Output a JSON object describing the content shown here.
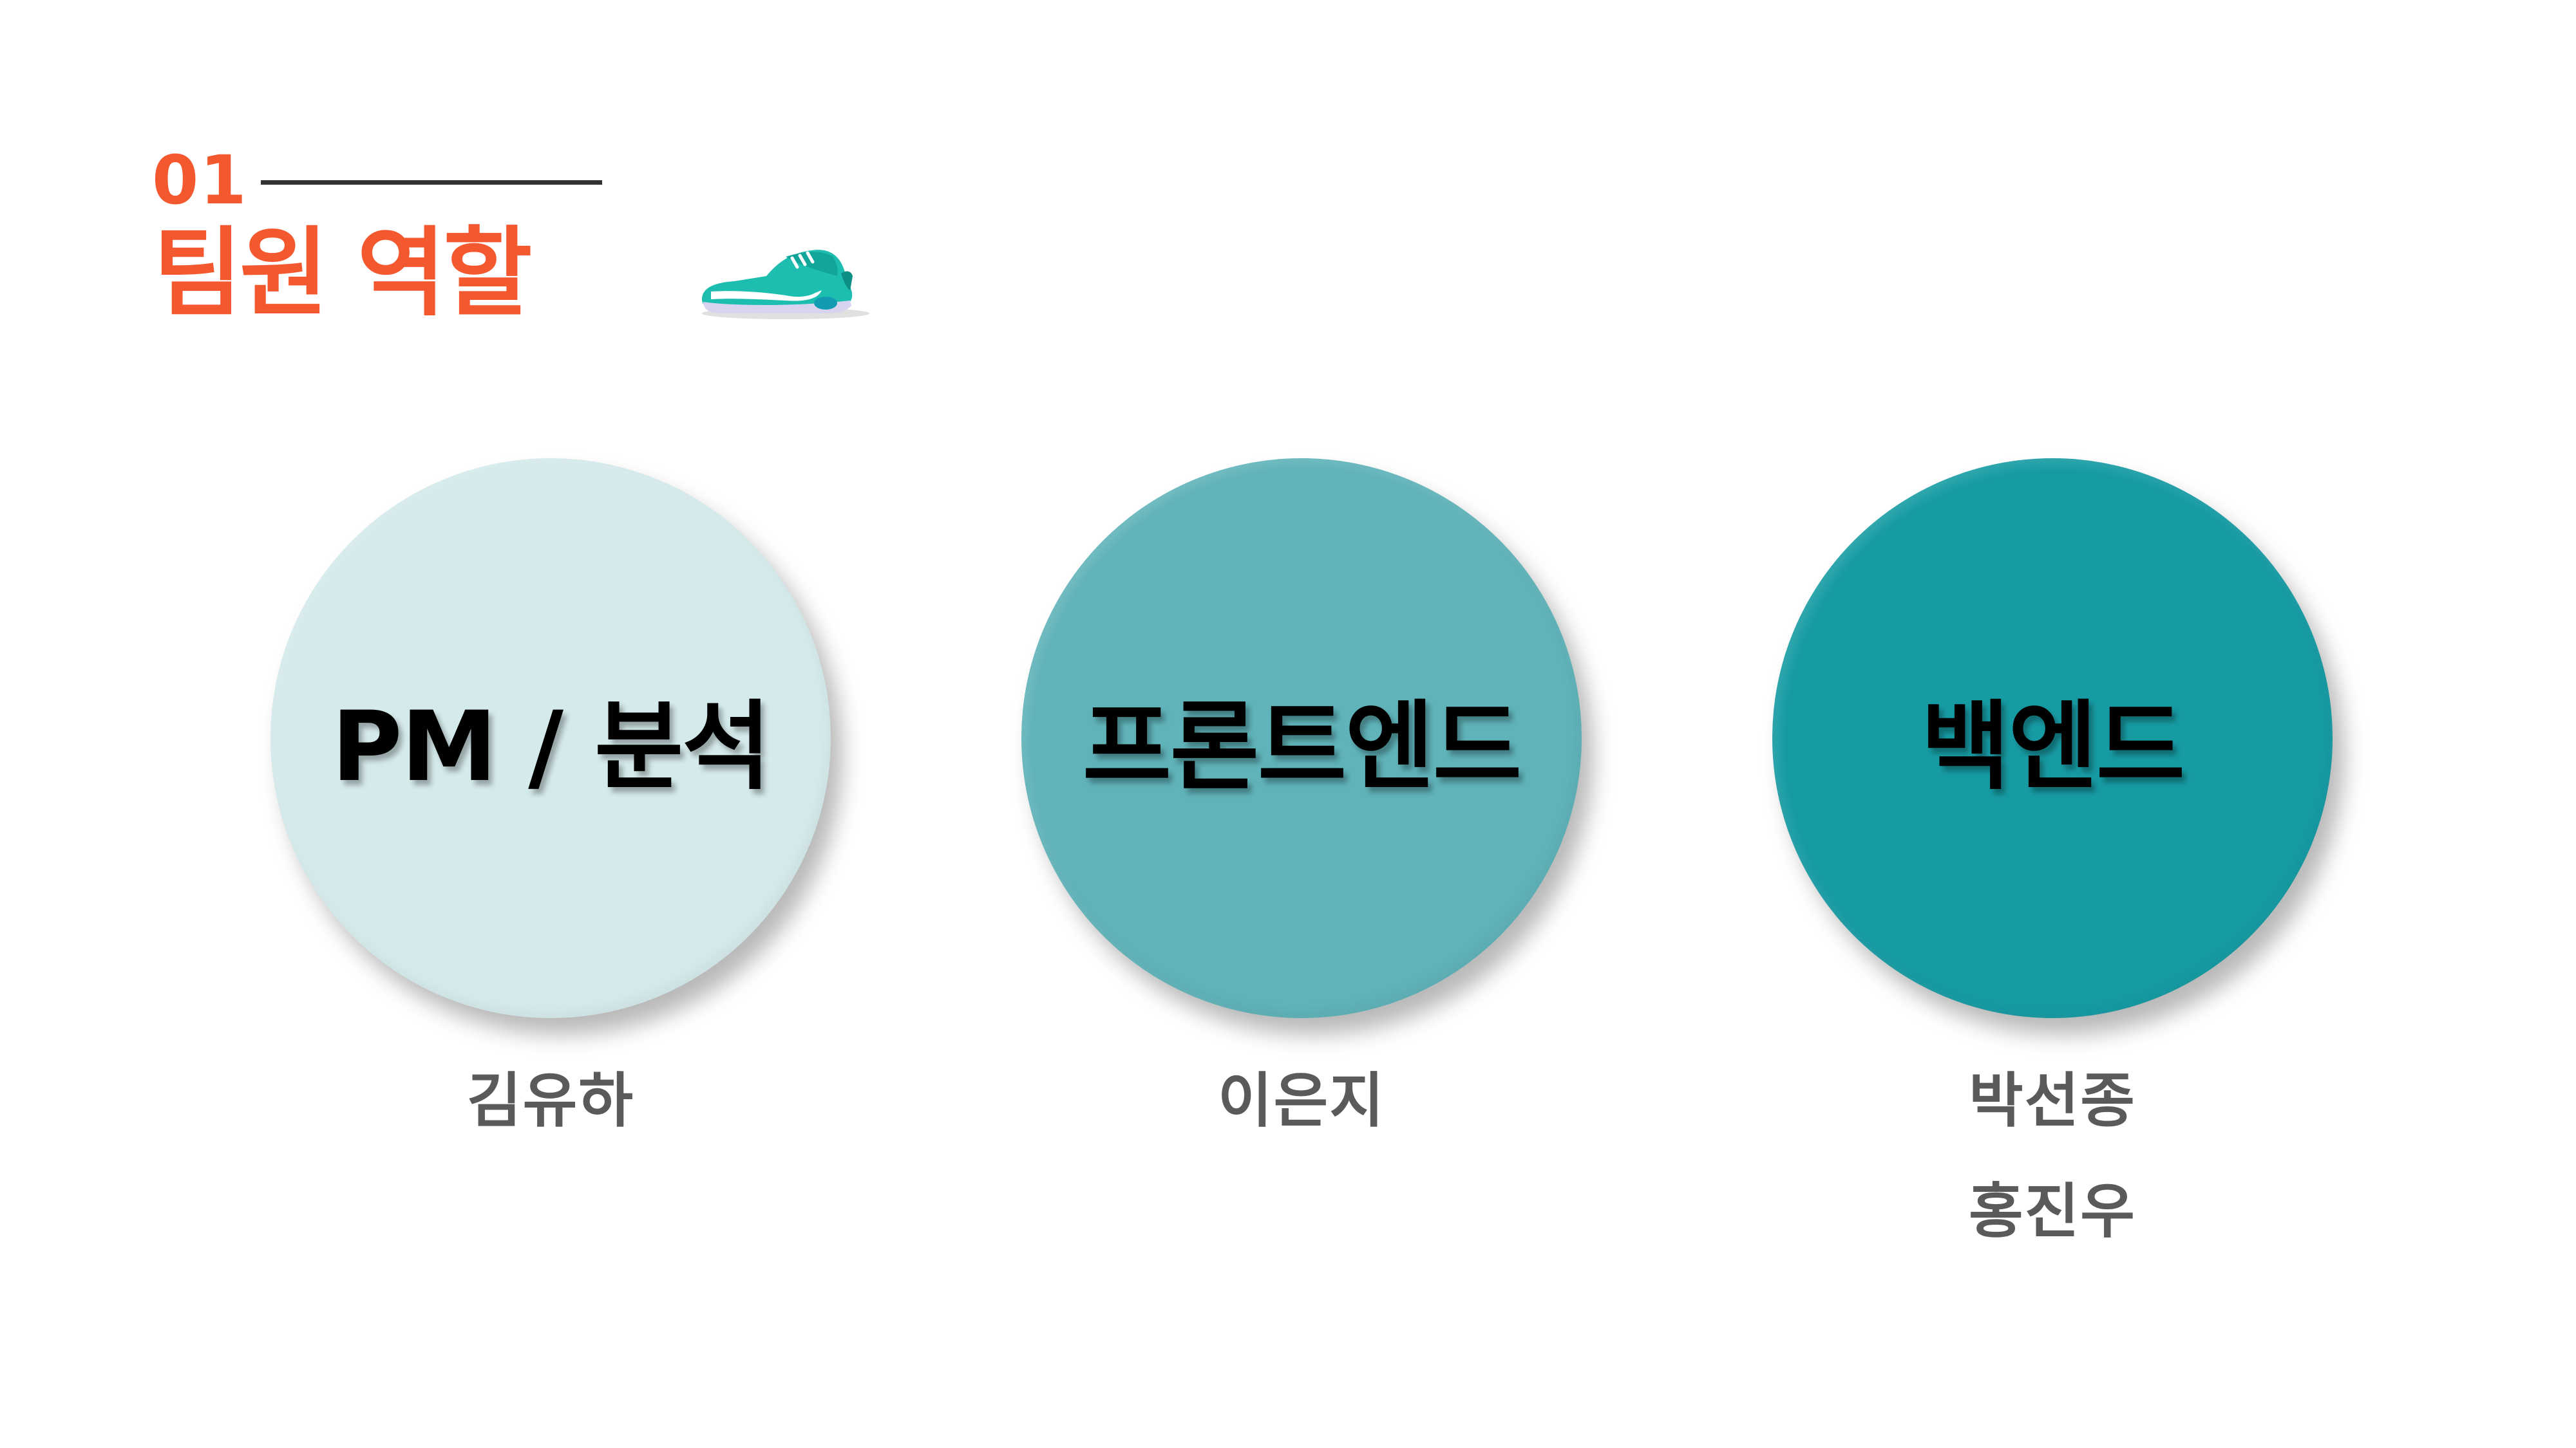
{
  "header": {
    "section_number": "01",
    "title": "팀원 역할",
    "decoration": "sneaker-icon"
  },
  "colors": {
    "accent": "#f4582f",
    "circle_light": "#d5eaeb",
    "circle_mid": "#5fb3b9",
    "circle_dark": "#179ba3",
    "member_text": "#5a5a5a"
  },
  "roles": [
    {
      "label": "PM / 분석",
      "members": [
        "김유하"
      ]
    },
    {
      "label": "프론트엔드",
      "members": [
        "이은지"
      ]
    },
    {
      "label": "백엔드",
      "members": [
        "박선종",
        "홍진우"
      ]
    }
  ]
}
